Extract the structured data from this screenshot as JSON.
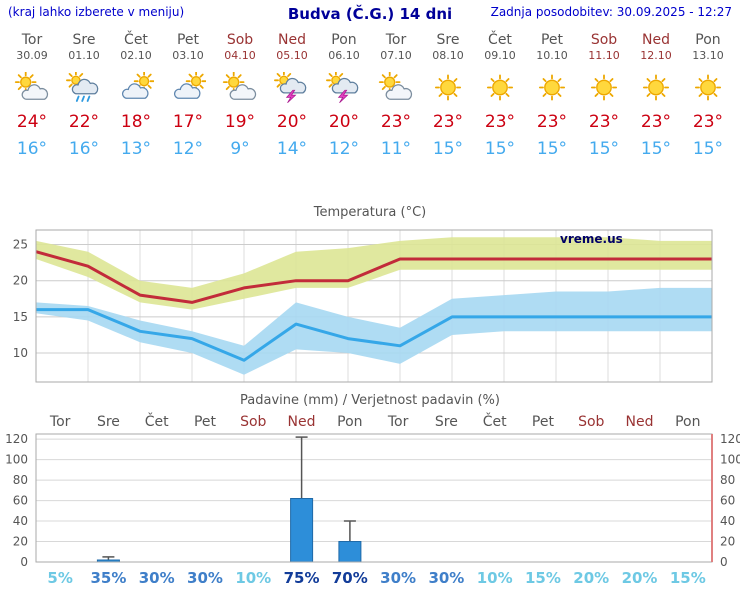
{
  "header": {
    "left_note": "(kraj lahko izberete v meniju)",
    "title": "Budva (Č.G.) 14 dni",
    "updated": "Zadnja posodobitev: 30.09.2025 - 12:27"
  },
  "forecast": {
    "days": [
      {
        "name": "Tor",
        "date": "30.09",
        "weekend": false,
        "icon": "partly-cloudy",
        "high": 24,
        "low": 16
      },
      {
        "name": "Sre",
        "date": "01.10",
        "weekend": false,
        "icon": "rain",
        "high": 22,
        "low": 16
      },
      {
        "name": "Čet",
        "date": "02.10",
        "weekend": false,
        "icon": "mostly-cloudy",
        "high": 18,
        "low": 13
      },
      {
        "name": "Pet",
        "date": "03.10",
        "weekend": false,
        "icon": "mostly-cloudy",
        "high": 17,
        "low": 12
      },
      {
        "name": "Sob",
        "date": "04.10",
        "weekend": true,
        "icon": "partly-cloudy",
        "high": 19,
        "low": 9
      },
      {
        "name": "Ned",
        "date": "05.10",
        "weekend": true,
        "icon": "thunderstorm",
        "high": 20,
        "low": 14
      },
      {
        "name": "Pon",
        "date": "06.10",
        "weekend": false,
        "icon": "thunderstorm",
        "high": 20,
        "low": 12
      },
      {
        "name": "Tor",
        "date": "07.10",
        "weekend": false,
        "icon": "partly-cloudy",
        "high": 23,
        "low": 11
      },
      {
        "name": "Sre",
        "date": "08.10",
        "weekend": false,
        "icon": "sunny",
        "high": 23,
        "low": 15
      },
      {
        "name": "Čet",
        "date": "09.10",
        "weekend": false,
        "icon": "sunny",
        "high": 23,
        "low": 15
      },
      {
        "name": "Pet",
        "date": "10.10",
        "weekend": false,
        "icon": "sunny",
        "high": 23,
        "low": 15
      },
      {
        "name": "Sob",
        "date": "11.10",
        "weekend": true,
        "icon": "sunny",
        "high": 23,
        "low": 15
      },
      {
        "name": "Ned",
        "date": "12.10",
        "weekend": true,
        "icon": "sunny",
        "high": 23,
        "low": 15
      },
      {
        "name": "Pon",
        "date": "13.10",
        "weekend": false,
        "icon": "sunny",
        "high": 23,
        "low": 15
      }
    ]
  },
  "chart_data": [
    {
      "type": "line",
      "title": "Temperatura (°C)",
      "watermark": "vreme.us",
      "ylim": [
        6,
        27
      ],
      "yticks": [
        10,
        15,
        20,
        25
      ],
      "grid": true,
      "series": [
        {
          "name": "max-temp",
          "color": "#c22b3a",
          "values": [
            24,
            22,
            18,
            17,
            19,
            20,
            20,
            23,
            23,
            23,
            23,
            23,
            23,
            23
          ]
        },
        {
          "name": "min-temp",
          "color": "#35a7e8",
          "values": [
            16,
            16,
            13,
            12,
            9,
            14,
            12,
            11,
            15,
            15,
            15,
            15,
            15,
            15
          ]
        }
      ],
      "bands": {
        "max_fill": "#dde695",
        "max_upper": [
          25.5,
          24,
          20,
          19,
          21,
          24,
          24.5,
          25.5,
          26,
          26,
          26,
          26,
          25.5,
          25.5
        ],
        "max_lower": [
          23,
          20.5,
          17,
          16,
          17.5,
          19,
          19,
          21.5,
          21.5,
          21.5,
          21.5,
          21.5,
          21.5,
          21.5
        ],
        "min_fill": "#a6d8f2",
        "min_upper": [
          17,
          16.5,
          14.5,
          13,
          11,
          17,
          15,
          13.5,
          17.5,
          18,
          18.5,
          18.5,
          19,
          19
        ],
        "min_lower": [
          15.5,
          14.5,
          11.5,
          10,
          7,
          10.5,
          10,
          8.5,
          12.5,
          13,
          13,
          13,
          13,
          13
        ]
      }
    },
    {
      "type": "bar",
      "title": "Padavine (mm) / Verjetnost padavin (%)",
      "categories": [
        "Tor",
        "Sre",
        "Čet",
        "Pet",
        "Sob",
        "Ned",
        "Pon",
        "Tor",
        "Sre",
        "Čet",
        "Pet",
        "Sob",
        "Ned",
        "Pon"
      ],
      "weekend_indices": [
        4,
        5,
        11,
        12
      ],
      "values": [
        0,
        2,
        0,
        0,
        0,
        62,
        20,
        0,
        0,
        0,
        0,
        0,
        0,
        0
      ],
      "whisker_high": [
        0,
        5,
        0,
        0,
        0,
        122,
        40,
        0,
        0,
        0,
        0,
        0,
        0,
        0
      ],
      "bar_color": "#2d8ed9",
      "bar_edge_color": "#1f6aa8",
      "ylim": [
        0,
        125
      ],
      "yticks": [
        0,
        20,
        40,
        60,
        80,
        100,
        120
      ],
      "probabilities": [
        {
          "label": "5%",
          "level": "low"
        },
        {
          "label": "35%",
          "level": "mid"
        },
        {
          "label": "30%",
          "level": "mid"
        },
        {
          "label": "30%",
          "level": "mid"
        },
        {
          "label": "10%",
          "level": "low"
        },
        {
          "label": "75%",
          "level": "high"
        },
        {
          "label": "70%",
          "level": "high"
        },
        {
          "label": "30%",
          "level": "mid"
        },
        {
          "label": "30%",
          "level": "mid"
        },
        {
          "label": "10%",
          "level": "low"
        },
        {
          "label": "15%",
          "level": "low"
        },
        {
          "label": "20%",
          "level": "low"
        },
        {
          "label": "20%",
          "level": "low"
        },
        {
          "label": "15%",
          "level": "low"
        }
      ]
    }
  ],
  "colors": {
    "link_blue": "#0000cc",
    "title_navy": "#000099",
    "weekday_gray": "#555555",
    "weekend_red": "#993333",
    "high_temp_red": "#cc0011",
    "low_temp_blue": "#44aaee",
    "right_spine_red": "#e08080"
  }
}
